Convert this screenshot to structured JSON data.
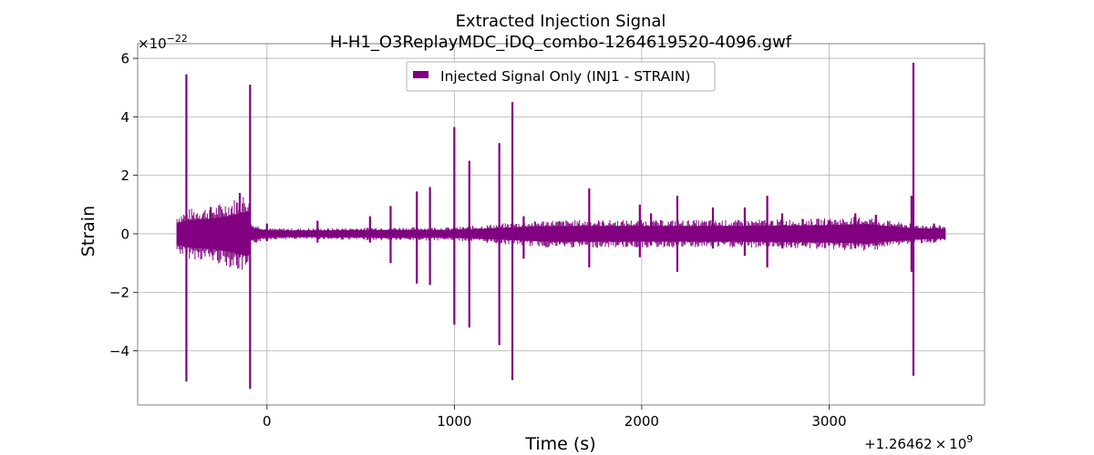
{
  "chart_data": {
    "type": "line",
    "title": "Extracted Injection Signal",
    "subtitle": "H-H1_O3ReplayMDC_iDQ_combo-1264619520-4096.gwf",
    "xlabel": "Time (s)",
    "ylabel": "Strain",
    "x_offset_label": "+1.26462 × 10",
    "x_offset_exponent": "9",
    "y_multiplier_label": "×10",
    "y_multiplier_exponent": "−22",
    "xlim": [
      -690,
      3830
    ],
    "ylim": [
      -5.85,
      6.5
    ],
    "xticks": [
      0,
      1000,
      2000,
      3000
    ],
    "xtick_labels": [
      "0",
      "1000",
      "2000",
      "3000"
    ],
    "yticks": [
      -4,
      -2,
      0,
      2,
      4,
      6
    ],
    "ytick_labels": [
      "−4",
      "−2",
      "0",
      "2",
      "4",
      "6"
    ],
    "grid": true,
    "legend_position": "top-center",
    "color": "#800080",
    "series": [
      {
        "name": "Injected Signal Only (INJ1 - STRAIN)",
        "x_range": [
          -480,
          3620
        ],
        "envelope": {
          "x": [
            -480,
            -420,
            -300,
            -200,
            -100,
            -85,
            0,
            300,
            600,
            1000,
            1500,
            2000,
            2500,
            3000,
            3200,
            3300,
            3450,
            3620
          ],
          "upper": [
            0.35,
            0.45,
            0.5,
            0.6,
            0.75,
            0.2,
            0.1,
            0.1,
            0.12,
            0.12,
            0.25,
            0.25,
            0.25,
            0.28,
            0.32,
            0.25,
            0.18,
            0.15
          ],
          "lower": [
            -0.35,
            -0.45,
            -0.5,
            -0.6,
            -0.75,
            -0.2,
            -0.1,
            -0.1,
            -0.12,
            -0.12,
            -0.25,
            -0.25,
            -0.25,
            -0.28,
            -0.32,
            -0.25,
            -0.18,
            -0.15
          ]
        },
        "spikes": [
          {
            "x": -430,
            "max": 5.45,
            "min": -5.05
          },
          {
            "x": -300,
            "max": 0.9,
            "min": -0.6
          },
          {
            "x": -145,
            "max": 1.4,
            "min": -0.8
          },
          {
            "x": -90,
            "max": 5.1,
            "min": -5.3
          },
          {
            "x": 0,
            "max": 0.35,
            "min": -0.25
          },
          {
            "x": 270,
            "max": 0.45,
            "min": -0.3
          },
          {
            "x": 550,
            "max": 0.6,
            "min": -0.3
          },
          {
            "x": 660,
            "max": 0.95,
            "min": -1.0
          },
          {
            "x": 800,
            "max": 1.45,
            "min": -1.7
          },
          {
            "x": 870,
            "max": 1.6,
            "min": -1.75
          },
          {
            "x": 1000,
            "max": 3.65,
            "min": -3.1
          },
          {
            "x": 1080,
            "max": 2.5,
            "min": -3.2
          },
          {
            "x": 1240,
            "max": 3.1,
            "min": -3.8
          },
          {
            "x": 1310,
            "max": 4.5,
            "min": -5.0
          },
          {
            "x": 1370,
            "max": 0.6,
            "min": -0.85
          },
          {
            "x": 1720,
            "max": 1.55,
            "min": -1.15
          },
          {
            "x": 1990,
            "max": 1.0,
            "min": -0.8
          },
          {
            "x": 2050,
            "max": 0.7,
            "min": -0.4
          },
          {
            "x": 2190,
            "max": 1.3,
            "min": -1.3
          },
          {
            "x": 2380,
            "max": 0.9,
            "min": -0.5
          },
          {
            "x": 2550,
            "max": 0.9,
            "min": -0.75
          },
          {
            "x": 2670,
            "max": 1.3,
            "min": -1.15
          },
          {
            "x": 2750,
            "max": 0.7,
            "min": -0.5
          },
          {
            "x": 2860,
            "max": 0.5,
            "min": -0.4
          },
          {
            "x": 3000,
            "max": 0.45,
            "min": -0.4
          },
          {
            "x": 3140,
            "max": 0.7,
            "min": -0.5
          },
          {
            "x": 3250,
            "max": 0.65,
            "min": -0.4
          },
          {
            "x": 3440,
            "max": 1.3,
            "min": -1.3
          },
          {
            "x": 3450,
            "max": 5.85,
            "min": -4.85
          },
          {
            "x": 3560,
            "max": 0.35,
            "min": -0.3
          }
        ]
      }
    ]
  }
}
